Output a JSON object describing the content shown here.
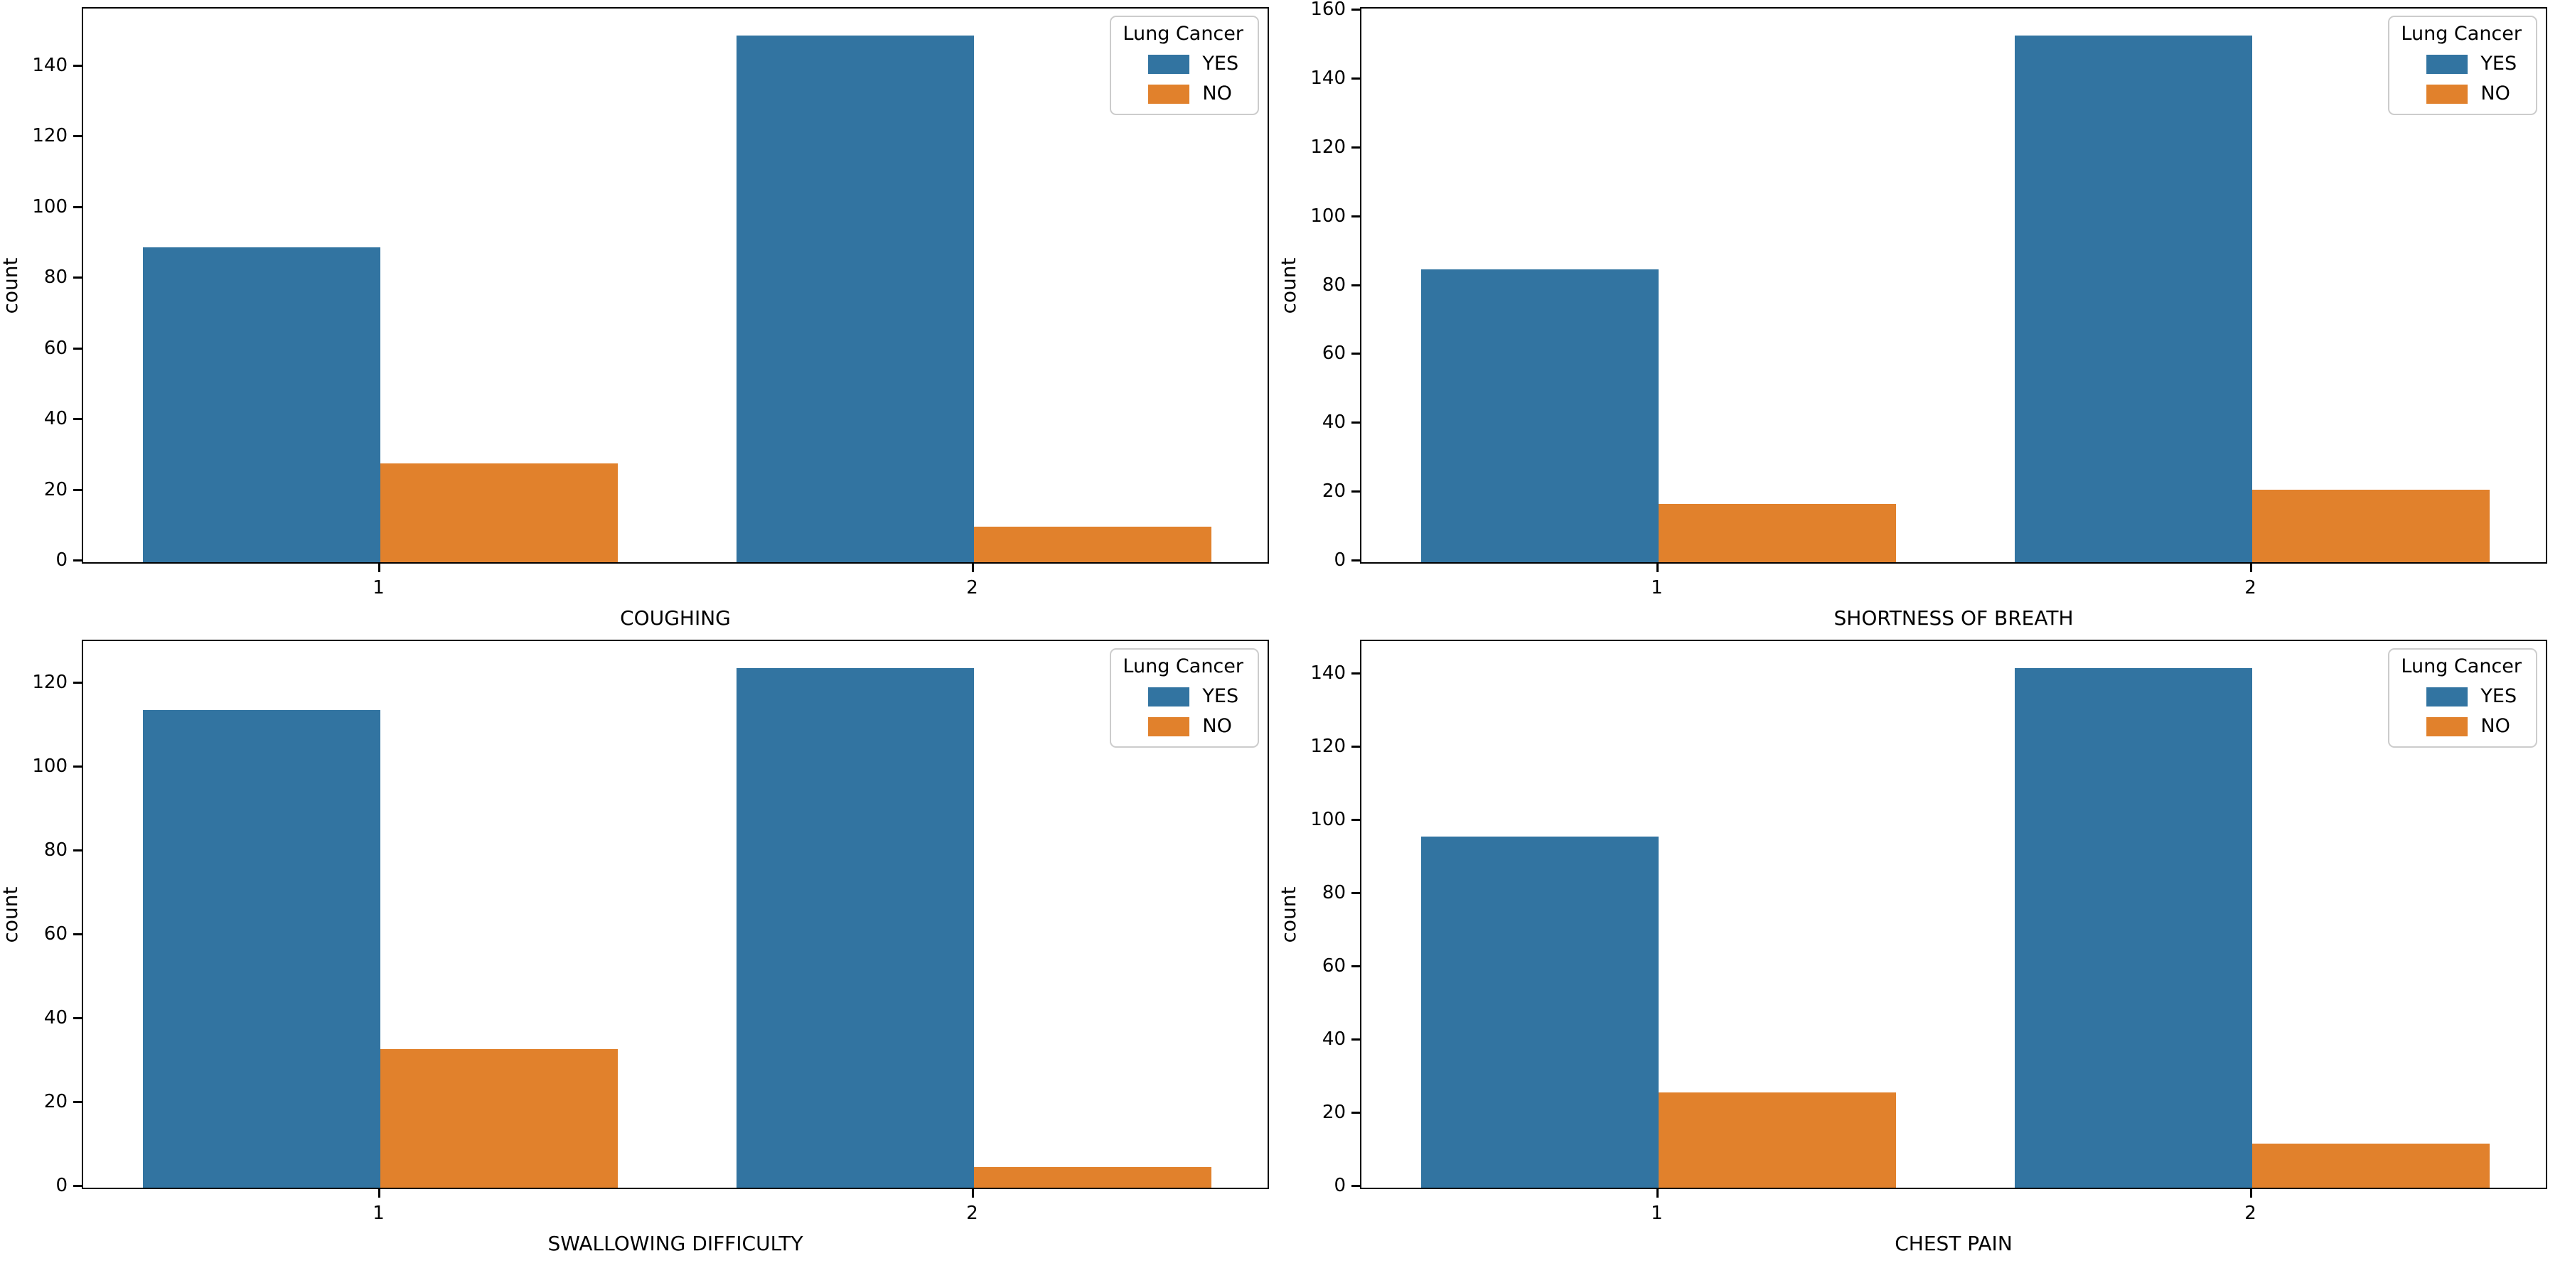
{
  "figure": {
    "background_color": "#ffffff",
    "text_color": "#000000",
    "series_colors": {
      "YES": "#3274a1",
      "NO": "#e1812c"
    }
  },
  "chart_data": [
    {
      "type": "bar",
      "title": "",
      "xlabel": "COUGHING",
      "ylabel": "count",
      "categories": [
        "1",
        "2"
      ],
      "series": [
        {
          "name": "YES",
          "color": "#3274a1",
          "values": [
            89,
            149
          ]
        },
        {
          "name": "NO",
          "color": "#e1812c",
          "values": [
            28,
            10
          ]
        }
      ],
      "legend": {
        "title": "Lung Cancer",
        "entries": [
          "YES",
          "NO"
        ],
        "position": "upper right"
      },
      "ylim": [
        0,
        156.45
      ],
      "yticks": [
        0,
        20,
        40,
        60,
        80,
        100,
        120,
        140
      ],
      "grid": false
    },
    {
      "type": "bar",
      "title": "",
      "xlabel": "SHORTNESS OF BREATH",
      "ylabel": "count",
      "categories": [
        "1",
        "2"
      ],
      "series": [
        {
          "name": "YES",
          "color": "#3274a1",
          "values": [
            85,
            153
          ]
        },
        {
          "name": "NO",
          "color": "#e1812c",
          "values": [
            17,
            21
          ]
        }
      ],
      "legend": {
        "title": "Lung Cancer",
        "entries": [
          "YES",
          "NO"
        ],
        "position": "upper right"
      },
      "ylim": [
        0,
        160.65
      ],
      "yticks": [
        0,
        20,
        40,
        60,
        80,
        100,
        120,
        140,
        160
      ],
      "grid": false
    },
    {
      "type": "bar",
      "title": "",
      "xlabel": "SWALLOWING DIFFICULTY",
      "ylabel": "count",
      "categories": [
        "1",
        "2"
      ],
      "series": [
        {
          "name": "YES",
          "color": "#3274a1",
          "values": [
            114,
            124
          ]
        },
        {
          "name": "NO",
          "color": "#e1812c",
          "values": [
            33,
            5
          ]
        }
      ],
      "legend": {
        "title": "Lung Cancer",
        "entries": [
          "YES",
          "NO"
        ],
        "position": "upper right"
      },
      "ylim": [
        0,
        130.2
      ],
      "yticks": [
        0,
        20,
        40,
        60,
        80,
        100,
        120
      ],
      "grid": false
    },
    {
      "type": "bar",
      "title": "",
      "xlabel": "CHEST PAIN",
      "ylabel": "count",
      "categories": [
        "1",
        "2"
      ],
      "series": [
        {
          "name": "YES",
          "color": "#3274a1",
          "values": [
            96,
            142
          ]
        },
        {
          "name": "NO",
          "color": "#e1812c",
          "values": [
            26,
            12
          ]
        }
      ],
      "legend": {
        "title": "Lung Cancer",
        "entries": [
          "YES",
          "NO"
        ],
        "position": "upper right"
      },
      "ylim": [
        0,
        149.1
      ],
      "yticks": [
        0,
        20,
        40,
        60,
        80,
        100,
        120,
        140
      ],
      "grid": false
    }
  ]
}
